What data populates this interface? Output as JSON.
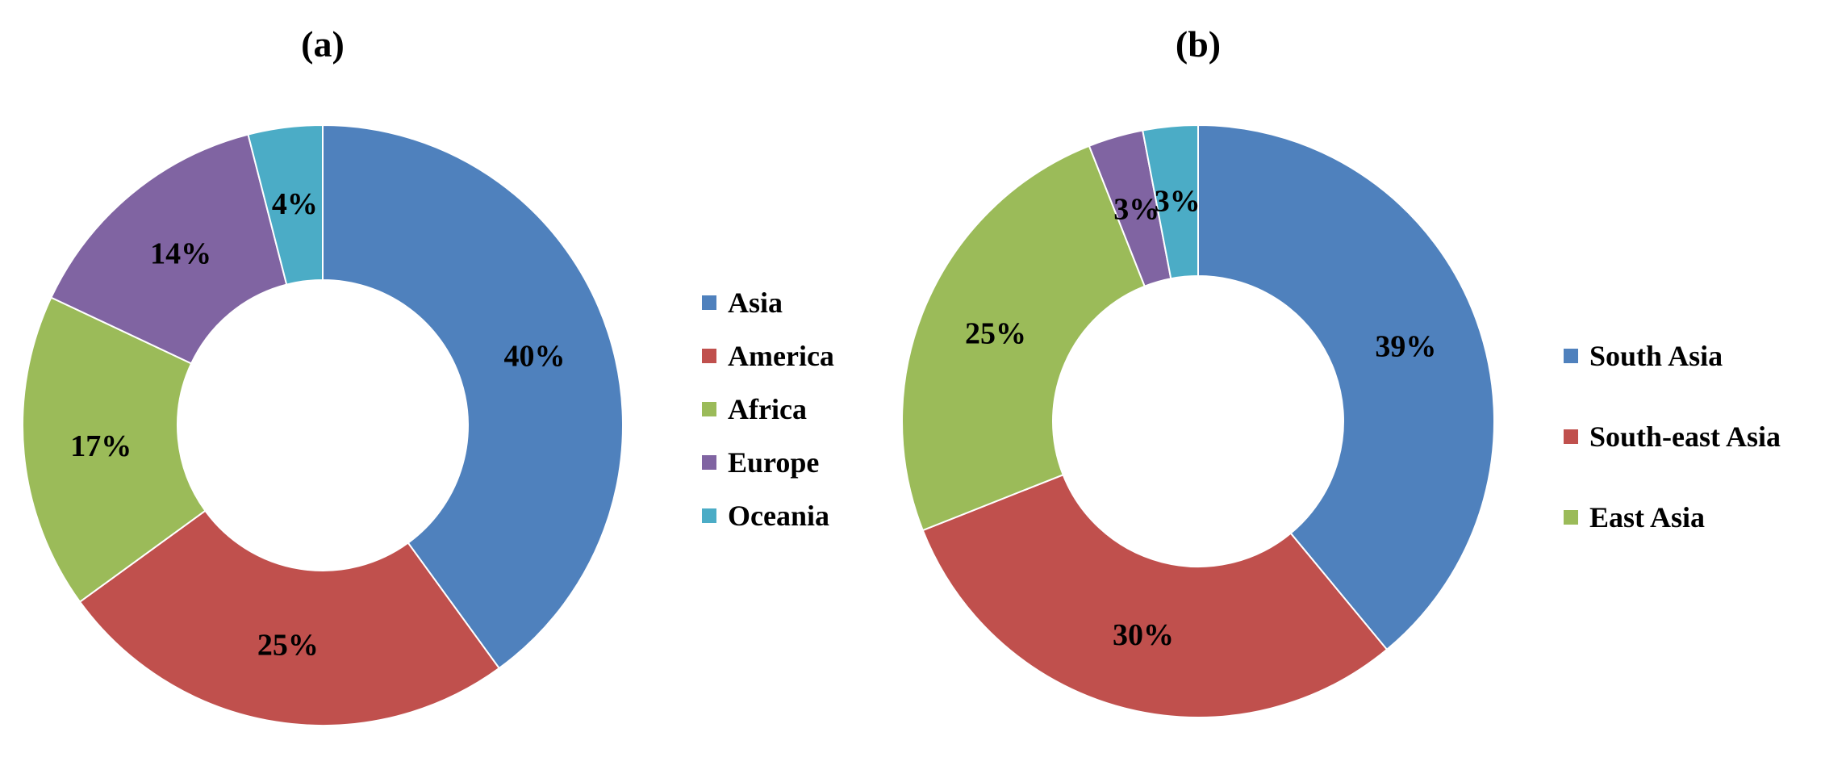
{
  "chart_data": [
    {
      "type": "pie",
      "donut": true,
      "title": "(a)",
      "legend_position": "right",
      "series": [
        {
          "name": "Asia",
          "value": 40,
          "label": "40%",
          "color": "#4f81bd"
        },
        {
          "name": "America",
          "value": 25,
          "label": "25%",
          "color": "#c0504d"
        },
        {
          "name": "Africa",
          "value": 17,
          "label": "17%",
          "color": "#9bbb59"
        },
        {
          "name": "Europe",
          "value": 14,
          "label": "14%",
          "color": "#8064a2"
        },
        {
          "name": "Oceania",
          "value": 4,
          "label": "4%",
          "color": "#4bacc6"
        }
      ]
    },
    {
      "type": "pie",
      "donut": true,
      "title": "(b)",
      "legend_position": "right",
      "series": [
        {
          "name": "South Asia",
          "value": 39,
          "label": "39%",
          "color": "#4f81bd"
        },
        {
          "name": "South-east Asia",
          "value": 30,
          "label": "30%",
          "color": "#c0504d"
        },
        {
          "name": "East Asia",
          "value": 25,
          "label": "25%",
          "color": "#9bbb59"
        },
        {
          "value": 3,
          "label": "3%",
          "color": "#8064a2"
        },
        {
          "value": 3,
          "label": "3%",
          "color": "#4bacc6"
        }
      ]
    }
  ]
}
